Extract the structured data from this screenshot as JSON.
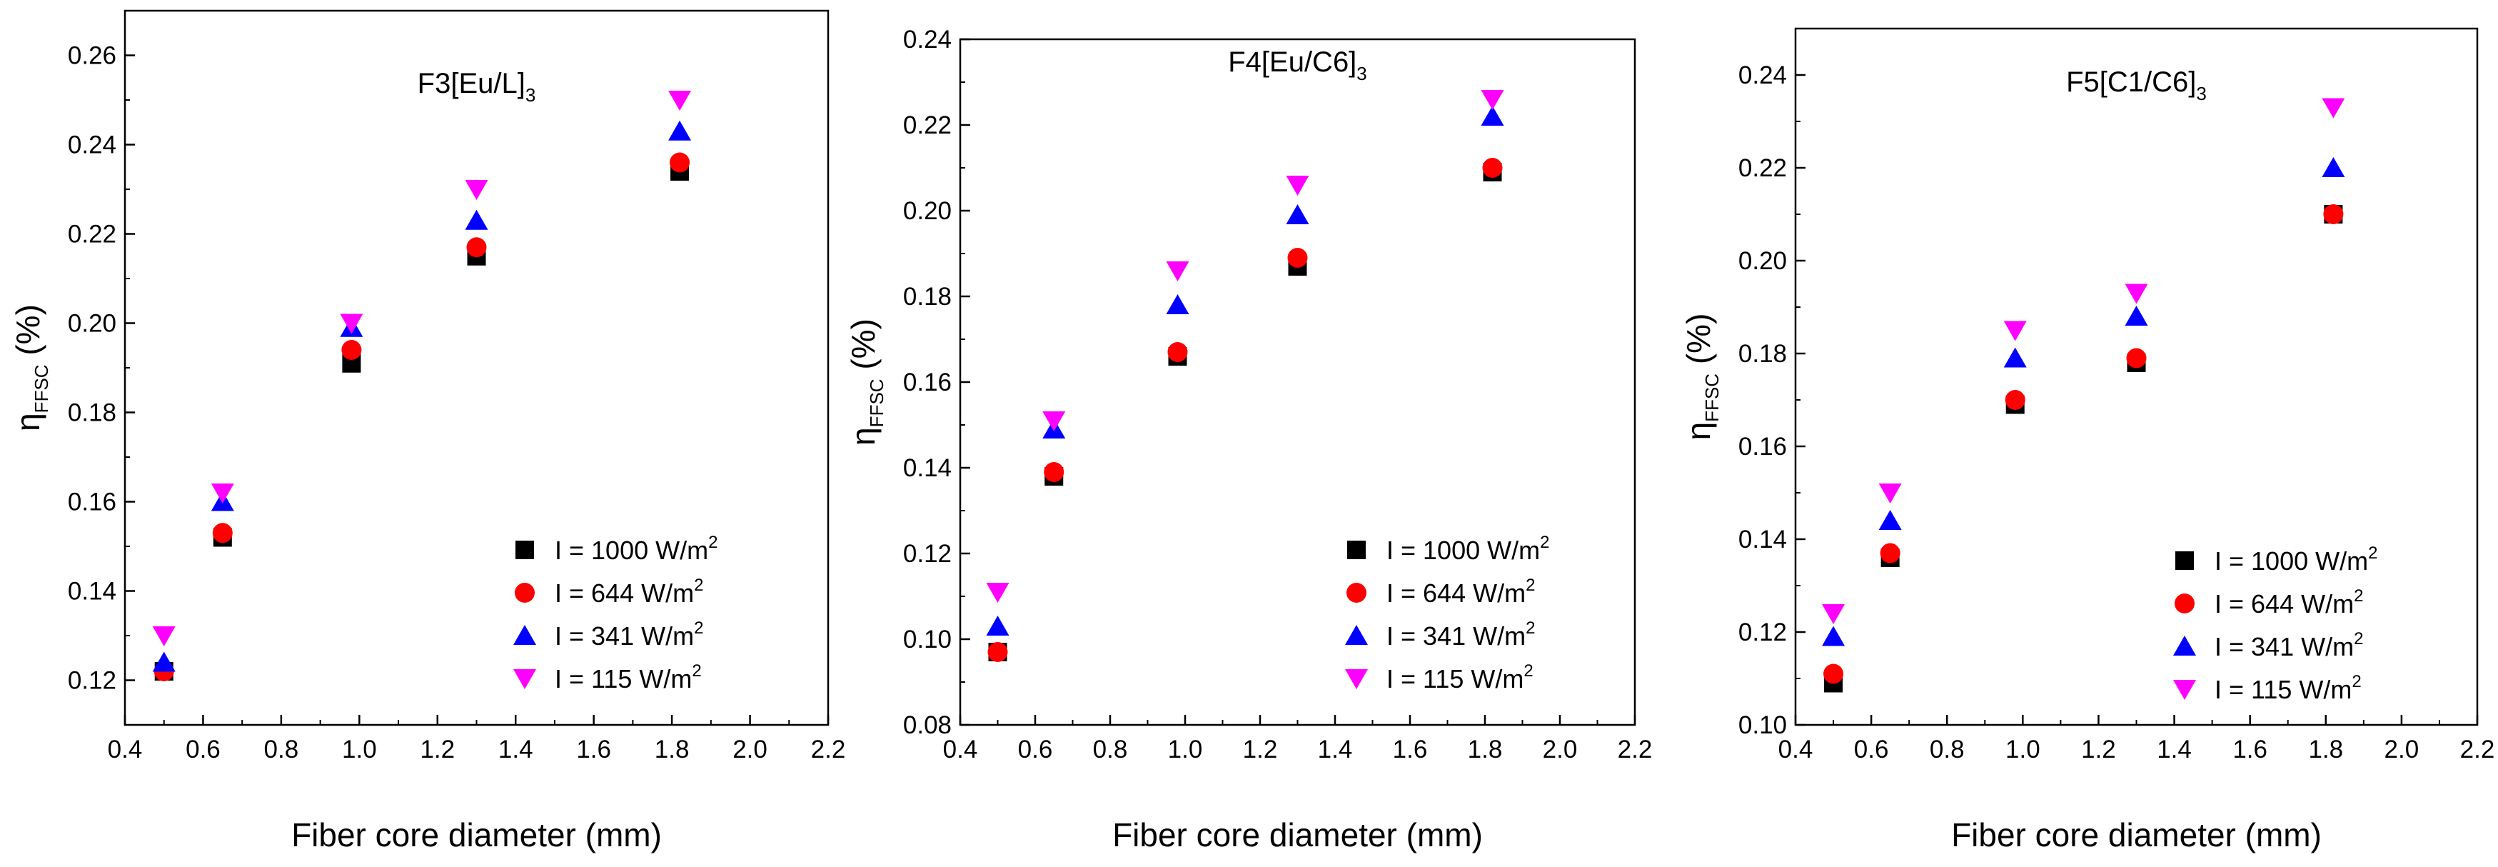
{
  "chart_data": [
    {
      "type": "scatter",
      "title": "F3[Eu/L]",
      "title_subscript": "3",
      "xlabel": "Fiber core diameter (mm)",
      "ylabel_symbol": "η",
      "ylabel_subscript": "FFSC",
      "ylabel_unit": " (%)",
      "xlim": [
        0.4,
        2.2
      ],
      "ylim": [
        0.11,
        0.27
      ],
      "xticks": [
        "0.4",
        "0.6",
        "0.8",
        "1.0",
        "1.2",
        "1.4",
        "1.6",
        "1.8",
        "2.0",
        "2.2"
      ],
      "yticks": [
        "0.12",
        "0.14",
        "0.16",
        "0.18",
        "0.20",
        "0.22",
        "0.24",
        "0.26"
      ],
      "x": [
        0.5,
        0.65,
        0.98,
        1.3,
        1.82
      ],
      "series": [
        {
          "name": "I = 1000 W/m",
          "name_sup": "2",
          "color": "#000000",
          "marker": "square",
          "values": [
            0.122,
            0.152,
            0.191,
            0.215,
            0.234
          ]
        },
        {
          "name": "I = 644 W/m",
          "name_sup": "2",
          "color": "#ff0000",
          "marker": "circle",
          "values": [
            0.122,
            0.153,
            0.194,
            0.217,
            0.236
          ]
        },
        {
          "name": "I = 341 W/m",
          "name_sup": "2",
          "color": "#0000ff",
          "marker": "triangle-up",
          "values": [
            0.124,
            0.16,
            0.199,
            0.223,
            0.243
          ]
        },
        {
          "name": "I = 115 W/m",
          "name_sup": "2",
          "color": "#ff00ff",
          "marker": "triangle-down",
          "values": [
            0.13,
            0.162,
            0.2,
            0.23,
            0.25
          ]
        }
      ],
      "legend_position": "bottom-right"
    },
    {
      "type": "scatter",
      "title": "F4[Eu/C6]",
      "title_subscript": "3",
      "xlabel": "Fiber core diameter (mm)",
      "ylabel_symbol": "η",
      "ylabel_subscript": "FFSC",
      "ylabel_unit": " (%)",
      "xlim": [
        0.4,
        2.2
      ],
      "ylim": [
        0.08,
        0.24
      ],
      "xticks": [
        "0.4",
        "0.6",
        "0.8",
        "1.0",
        "1.2",
        "1.4",
        "1.6",
        "1.8",
        "2.0",
        "2.2"
      ],
      "yticks": [
        "0.08",
        "0.10",
        "0.12",
        "0.14",
        "0.16",
        "0.18",
        "0.20",
        "0.22",
        "0.24"
      ],
      "x": [
        0.5,
        0.65,
        0.98,
        1.3,
        1.82
      ],
      "series": [
        {
          "name": "I = 1000 W/m",
          "name_sup": "2",
          "color": "#000000",
          "marker": "square",
          "values": [
            0.097,
            0.138,
            0.166,
            0.187,
            0.209
          ]
        },
        {
          "name": "I = 644 W/m",
          "name_sup": "2",
          "color": "#ff0000",
          "marker": "circle",
          "values": [
            0.097,
            0.139,
            0.167,
            0.189,
            0.21
          ]
        },
        {
          "name": "I = 341 W/m",
          "name_sup": "2",
          "color": "#0000ff",
          "marker": "triangle-up",
          "values": [
            0.103,
            0.149,
            0.178,
            0.199,
            0.222
          ]
        },
        {
          "name": "I = 115 W/m",
          "name_sup": "2",
          "color": "#ff00ff",
          "marker": "triangle-down",
          "values": [
            0.111,
            0.151,
            0.186,
            0.206,
            0.226
          ]
        }
      ],
      "legend_position": "bottom-right"
    },
    {
      "type": "scatter",
      "title": "F5[C1/C6]",
      "title_subscript": "3",
      "xlabel": "Fiber core diameter (mm)",
      "ylabel_symbol": "η",
      "ylabel_subscript": "FFSC",
      "ylabel_unit": " (%)",
      "xlim": [
        0.4,
        2.2
      ],
      "ylim": [
        0.1,
        0.25
      ],
      "xticks": [
        "0.4",
        "0.6",
        "0.8",
        "1.0",
        "1.2",
        "1.4",
        "1.6",
        "1.8",
        "2.0",
        "2.2"
      ],
      "yticks": [
        "0.10",
        "0.12",
        "0.14",
        "0.16",
        "0.18",
        "0.20",
        "0.22",
        "0.24"
      ],
      "x": [
        0.5,
        0.65,
        0.98,
        1.3,
        1.82
      ],
      "series": [
        {
          "name": "I = 1000 W/m",
          "name_sup": "2",
          "color": "#000000",
          "marker": "square",
          "values": [
            0.109,
            0.136,
            0.169,
            0.178,
            0.21
          ]
        },
        {
          "name": "I = 644 W/m",
          "name_sup": "2",
          "color": "#ff0000",
          "marker": "circle",
          "values": [
            0.111,
            0.137,
            0.17,
            0.179,
            0.21
          ]
        },
        {
          "name": "I = 341 W/m",
          "name_sup": "2",
          "color": "#0000ff",
          "marker": "triangle-up",
          "values": [
            0.119,
            0.144,
            0.179,
            0.188,
            0.22
          ]
        },
        {
          "name": "I = 115 W/m",
          "name_sup": "2",
          "color": "#ff00ff",
          "marker": "triangle-down",
          "values": [
            0.124,
            0.15,
            0.185,
            0.193,
            0.233
          ]
        }
      ],
      "legend_position": "bottom-right"
    }
  ]
}
